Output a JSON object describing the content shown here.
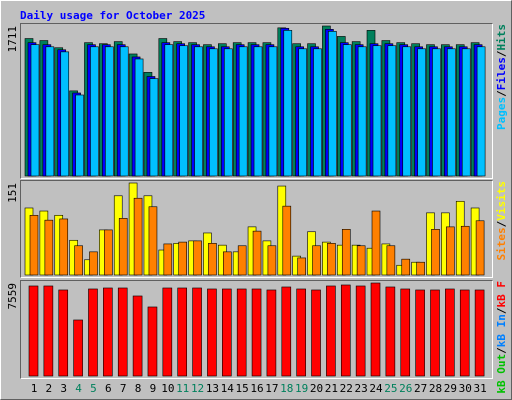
{
  "title": "Daily usage for October 2025",
  "legend_separator": "/",
  "highlight_color": "#00805c",
  "highlighted": [
    3,
    4,
    10,
    11,
    17,
    18,
    24,
    25
  ],
  "chart_data": [
    {
      "type": "bar",
      "ylim": [
        0,
        1711
      ],
      "yticks": [
        1711
      ],
      "series": [
        {
          "name": "Hits",
          "color": "#00805c",
          "values": [
            1568,
            1545,
            1463,
            971,
            1521,
            1509,
            1533,
            1392,
            1182,
            1568,
            1533,
            1521,
            1498,
            1509,
            1521,
            1521,
            1521,
            1690,
            1509,
            1509,
            1711,
            1592,
            1533,
            1661,
            1545,
            1521,
            1509,
            1498,
            1498,
            1498,
            1521
          ]
        },
        {
          "name": "Files",
          "color": "#0000ff",
          "values": [
            1521,
            1498,
            1440,
            947,
            1498,
            1498,
            1498,
            1358,
            1135,
            1521,
            1509,
            1498,
            1474,
            1474,
            1498,
            1498,
            1498,
            1685,
            1474,
            1474,
            1673,
            1521,
            1498,
            1509,
            1509,
            1498,
            1474,
            1474,
            1474,
            1474,
            1498
          ]
        },
        {
          "name": "Pages",
          "color": "#00c0ff",
          "values": [
            1498,
            1474,
            1416,
            924,
            1474,
            1474,
            1474,
            1335,
            1111,
            1498,
            1486,
            1474,
            1451,
            1451,
            1474,
            1474,
            1474,
            1661,
            1451,
            1451,
            1650,
            1498,
            1474,
            1486,
            1486,
            1474,
            1451,
            1451,
            1451,
            1451,
            1474
          ]
        }
      ]
    },
    {
      "type": "bar",
      "ylim": [
        0,
        151
      ],
      "yticks": [
        151
      ],
      "series": [
        {
          "name": "Visits",
          "color": "#ffff00",
          "values": [
            110,
            105,
            98,
            57,
            25,
            74,
            130,
            151,
            130,
            41,
            52,
            56,
            69,
            49,
            38,
            79,
            56,
            146,
            31,
            71,
            54,
            49,
            49,
            44,
            51,
            16,
            21,
            102,
            102,
            121,
            110
          ]
        },
        {
          "name": "Sites",
          "color": "#ff8000",
          "values": [
            98,
            90,
            92,
            48,
            38,
            74,
            93,
            126,
            112,
            51,
            54,
            56,
            52,
            38,
            48,
            72,
            48,
            113,
            28,
            48,
            52,
            75,
            48,
            105,
            48,
            26,
            21,
            75,
            79,
            80,
            89
          ]
        }
      ]
    },
    {
      "type": "bar",
      "ylim": [
        0,
        7559
      ],
      "yticks": [
        7559
      ],
      "categories": [
        "1",
        "2",
        "3",
        "4",
        "5",
        "6",
        "7",
        "8",
        "9",
        "10",
        "11",
        "12",
        "13",
        "14",
        "15",
        "16",
        "17",
        "18",
        "19",
        "20",
        "21",
        "22",
        "23",
        "24",
        "25",
        "26",
        "27",
        "28",
        "29",
        "30",
        "31"
      ],
      "series": [
        {
          "name": "kB F",
          "color": "#ff0000",
          "values": [
            7317,
            7317,
            6992,
            4553,
            7073,
            7154,
            7154,
            6504,
            5610,
            7154,
            7154,
            7154,
            7073,
            7073,
            7073,
            7073,
            6992,
            7236,
            7073,
            6992,
            7317,
            7398,
            7317,
            7559,
            7236,
            7073,
            6992,
            6992,
            7073,
            6992,
            6992
          ]
        },
        {
          "name": "kB In",
          "color": "#0080ff",
          "values": [
            0,
            0,
            0,
            0,
            0,
            0,
            0,
            0,
            0,
            0,
            0,
            0,
            0,
            0,
            0,
            0,
            0,
            0,
            0,
            0,
            0,
            0,
            0,
            0,
            0,
            0,
            0,
            0,
            0,
            0,
            0
          ]
        },
        {
          "name": "kB Out",
          "color": "#00c000",
          "values": [
            0,
            0,
            0,
            0,
            0,
            0,
            0,
            0,
            0,
            0,
            0,
            0,
            0,
            0,
            0,
            0,
            0,
            0,
            0,
            0,
            0,
            0,
            0,
            0,
            0,
            0,
            0,
            0,
            0,
            0,
            0
          ]
        }
      ]
    }
  ]
}
